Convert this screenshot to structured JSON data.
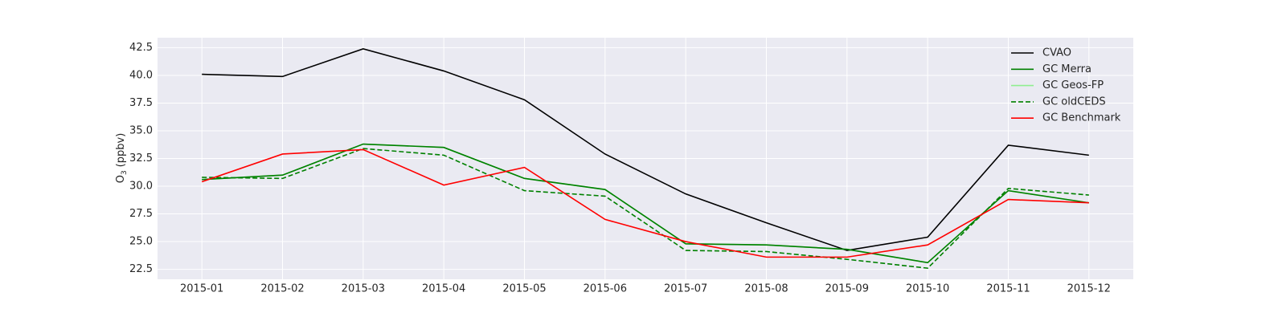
{
  "chart_data": {
    "type": "line",
    "ylabel_base": "O",
    "ylabel_sub": "3",
    "ylabel_unit": "(ppbv)",
    "categories": [
      "2015-01",
      "2015-02",
      "2015-03",
      "2015-04",
      "2015-05",
      "2015-06",
      "2015-07",
      "2015-08",
      "2015-09",
      "2015-10",
      "2015-11",
      "2015-12"
    ],
    "series": [
      {
        "name": "CVAO",
        "color": "#000000",
        "dash": false,
        "values": [
          40.1,
          39.9,
          42.4,
          40.4,
          37.8,
          32.9,
          29.3,
          26.7,
          24.2,
          25.4,
          33.7,
          32.8
        ]
      },
      {
        "name": "GC Merra",
        "color": "#008000",
        "dash": false,
        "values": [
          30.6,
          31.0,
          33.8,
          33.5,
          30.7,
          29.7,
          24.8,
          24.7,
          24.3,
          23.1,
          29.6,
          28.5
        ]
      },
      {
        "name": "GC Geos-FP",
        "color": "#90ee90",
        "dash": false,
        "values": [
          30.6,
          31.0,
          33.8,
          33.5,
          30.7,
          29.7,
          24.8,
          24.7,
          24.3,
          23.1,
          29.6,
          28.5
        ]
      },
      {
        "name": "GC oldCEDS",
        "color": "#008000",
        "dash": true,
        "values": [
          30.8,
          30.7,
          33.4,
          32.8,
          29.6,
          29.1,
          24.2,
          24.1,
          23.4,
          22.6,
          29.8,
          29.2
        ]
      },
      {
        "name": "GC Benchmark",
        "color": "#ff0000",
        "dash": false,
        "values": [
          30.4,
          32.9,
          33.3,
          30.1,
          31.7,
          27.0,
          25.0,
          23.6,
          23.6,
          24.7,
          28.8,
          28.5
        ]
      }
    ],
    "ylim": [
      21.6,
      43.4
    ],
    "yticks": [
      {
        "value": 22.5,
        "label": "22.5"
      },
      {
        "value": 25,
        "label": "25.0"
      },
      {
        "value": 27.5,
        "label": "27.5"
      },
      {
        "value": 30,
        "label": "30.0"
      },
      {
        "value": 32.5,
        "label": "32.5"
      },
      {
        "value": 35,
        "label": "35.0"
      },
      {
        "value": 37.5,
        "label": "37.5"
      },
      {
        "value": 40,
        "label": "40.0"
      },
      {
        "value": 42.5,
        "label": "42.5"
      }
    ],
    "grid": true,
    "legend": "upper right",
    "background": "#eaeaf2"
  }
}
